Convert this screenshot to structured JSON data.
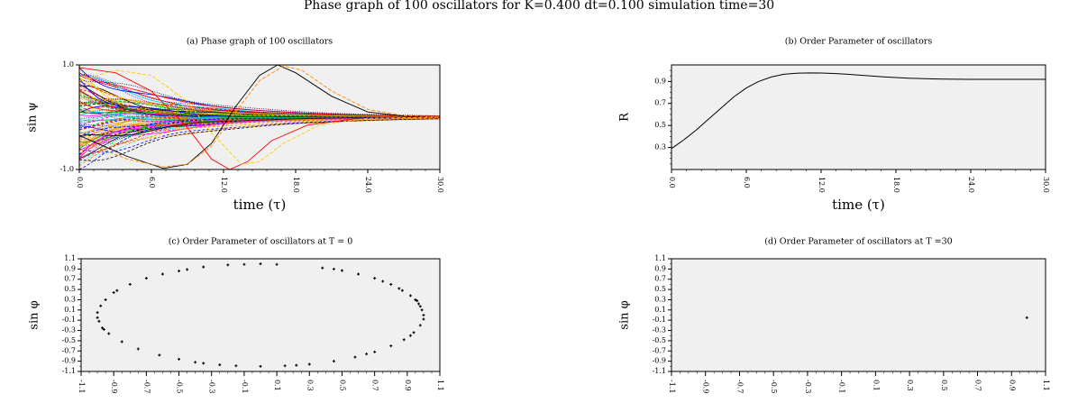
{
  "figure_title": "Phase graph of 100 oscillators for K=0.400 dt=0.100 simulation time=30",
  "chart_data": [
    {
      "id": "a",
      "type": "line",
      "title": "(a) Phase graph of 100 oscillators",
      "xlabel": "time (τ)",
      "ylabel": "sin ψ",
      "xlim": [
        0,
        30
      ],
      "ylim": [
        -1,
        1
      ],
      "x_ticks": [
        "0.0",
        "6.0",
        "12.0",
        "18.0",
        "24.0",
        "30.0"
      ],
      "y_ticks": [
        "-1.0",
        "1.0"
      ],
      "background": "#f0f0f0",
      "num_series": 100,
      "series_colors": [
        "#000000",
        "#ff0000",
        "#00aa00",
        "#0000ff",
        "#ff00ff",
        "#00cccc",
        "#ffcc00",
        "#ff8800"
      ],
      "converge_value": 0.0,
      "highlight_series": [
        {
          "color": "#000000",
          "points": [
            [
              0,
              -0.35
            ],
            [
              4,
              -0.75
            ],
            [
              7,
              -0.98
            ],
            [
              9,
              -0.9
            ],
            [
              11,
              -0.5
            ],
            [
              13,
              0.2
            ],
            [
              15,
              0.8
            ],
            [
              16.5,
              1.0
            ],
            [
              18,
              0.85
            ],
            [
              21,
              0.4
            ],
            [
              24,
              0.1
            ],
            [
              27,
              0.02
            ],
            [
              30,
              0.0
            ]
          ]
        },
        {
          "color": "#ff8800",
          "points": [
            [
              0,
              -0.45
            ],
            [
              4,
              -0.8
            ],
            [
              7,
              -0.95
            ],
            [
              9,
              -0.9
            ],
            [
              11,
              -0.55
            ],
            [
              13,
              0.1
            ],
            [
              15,
              0.7
            ],
            [
              17,
              0.98
            ],
            [
              18.5,
              0.9
            ],
            [
              21,
              0.5
            ],
            [
              24,
              0.15
            ],
            [
              27,
              0.03
            ],
            [
              30,
              0.0
            ]
          ]
        },
        {
          "color": "#ff0000",
          "points": [
            [
              0,
              0.95
            ],
            [
              3,
              0.85
            ],
            [
              6,
              0.5
            ],
            [
              9,
              -0.2
            ],
            [
              11,
              -0.8
            ],
            [
              12.5,
              -1.0
            ],
            [
              14,
              -0.85
            ],
            [
              16,
              -0.45
            ],
            [
              19,
              -0.15
            ],
            [
              23,
              -0.03
            ],
            [
              30,
              0.0
            ]
          ]
        },
        {
          "color": "#ffcc00",
          "points": [
            [
              0,
              0.7
            ],
            [
              3,
              0.9
            ],
            [
              6,
              0.8
            ],
            [
              9,
              0.3
            ],
            [
              11,
              -0.3
            ],
            [
              13.5,
              -0.9
            ],
            [
              15,
              -0.85
            ],
            [
              17,
              -0.5
            ],
            [
              20,
              -0.15
            ],
            [
              24,
              -0.02
            ],
            [
              30,
              0.0
            ]
          ]
        }
      ]
    },
    {
      "id": "b",
      "type": "line",
      "title": "(b) Order Parameter of oscillators",
      "xlabel": "time (τ)",
      "ylabel": "R",
      "xlim": [
        0,
        30
      ],
      "ylim": [
        0.1,
        1.05
      ],
      "x_ticks": [
        "0.0",
        "6.0",
        "12.0",
        "18.0",
        "24.0",
        "30.0"
      ],
      "y_ticks": [
        "0.3",
        "0.5",
        "0.7",
        "0.9"
      ],
      "background": "#f0f0f0",
      "x": [
        0,
        1,
        2,
        3,
        4,
        5,
        6,
        7,
        8,
        9,
        10,
        11,
        12,
        13,
        14,
        15,
        16,
        17,
        18,
        19,
        20,
        21,
        22,
        23,
        24,
        25,
        26,
        27,
        28,
        29,
        30
      ],
      "values": [
        0.29,
        0.37,
        0.46,
        0.56,
        0.66,
        0.76,
        0.84,
        0.9,
        0.94,
        0.965,
        0.975,
        0.977,
        0.976,
        0.972,
        0.966,
        0.958,
        0.95,
        0.942,
        0.935,
        0.93,
        0.926,
        0.923,
        0.921,
        0.92,
        0.919,
        0.919,
        0.919,
        0.919,
        0.919,
        0.919,
        0.919
      ]
    },
    {
      "id": "c",
      "type": "scatter",
      "title": "(c) Order Parameter of oscillators at T = 0",
      "ylabel": "sin φ",
      "xlim": [
        -1.1,
        1.1
      ],
      "ylim": [
        -1.1,
        1.1
      ],
      "x_ticks": [
        "-1.1",
        "-0.9",
        "-0.7",
        "-0.5",
        "-0.3",
        "-0.1",
        "0.1",
        "0.3",
        "0.5",
        "0.7",
        "0.9",
        "1.1"
      ],
      "y_ticks": [
        "1.1",
        "0.9",
        "0.7",
        "0.5",
        "0.3",
        "0.1",
        "-0.1",
        "-0.3",
        "-0.5",
        "-0.7",
        "-0.9",
        "-1.1"
      ],
      "background": "#f0f0f0",
      "points": [
        [
          1.0,
          0.0
        ],
        [
          0.99,
          0.1
        ],
        [
          0.98,
          0.17
        ],
        [
          0.97,
          0.22
        ],
        [
          0.95,
          0.3
        ],
        [
          0.92,
          0.38
        ],
        [
          0.87,
          0.48
        ],
        [
          0.8,
          0.6
        ],
        [
          0.7,
          0.72
        ],
        [
          0.6,
          0.8
        ],
        [
          0.45,
          0.9
        ],
        [
          0.38,
          0.92
        ],
        [
          0.1,
          0.99
        ],
        [
          0.0,
          1.0
        ],
        [
          -0.2,
          0.98
        ],
        [
          -0.35,
          0.94
        ],
        [
          -0.5,
          0.86
        ],
        [
          -0.6,
          0.8
        ],
        [
          -0.7,
          0.72
        ],
        [
          -0.8,
          0.6
        ],
        [
          -0.88,
          0.48
        ],
        [
          -0.95,
          0.3
        ],
        [
          -0.98,
          0.18
        ],
        [
          -1.0,
          0.05
        ],
        [
          -1.0,
          -0.05
        ],
        [
          -0.99,
          -0.12
        ],
        [
          -0.97,
          -0.25
        ],
        [
          -0.93,
          -0.36
        ],
        [
          -0.85,
          -0.52
        ],
        [
          -0.75,
          -0.66
        ],
        [
          -0.62,
          -0.78
        ],
        [
          -0.5,
          -0.86
        ],
        [
          -0.35,
          -0.94
        ],
        [
          -0.25,
          -0.97
        ],
        [
          -0.15,
          -0.99
        ],
        [
          0.0,
          -1.0
        ],
        [
          0.15,
          -0.99
        ],
        [
          0.3,
          -0.96
        ],
        [
          0.45,
          -0.9
        ],
        [
          0.58,
          -0.82
        ],
        [
          0.7,
          -0.72
        ],
        [
          0.8,
          -0.6
        ],
        [
          0.88,
          -0.48
        ],
        [
          0.94,
          -0.34
        ],
        [
          0.98,
          -0.2
        ],
        [
          1.0,
          -0.08
        ],
        [
          0.96,
          0.28
        ],
        [
          0.85,
          0.52
        ],
        [
          0.75,
          0.66
        ],
        [
          0.5,
          0.87
        ],
        [
          -0.1,
          0.99
        ],
        [
          -0.45,
          0.89
        ],
        [
          -0.9,
          0.44
        ],
        [
          -0.96,
          -0.28
        ],
        [
          -0.4,
          -0.92
        ],
        [
          0.22,
          -0.98
        ],
        [
          0.65,
          -0.76
        ],
        [
          0.92,
          -0.4
        ]
      ]
    },
    {
      "id": "d",
      "type": "scatter",
      "title": "(d) Order Parameter of oscillators at T =30",
      "ylabel": "sin φ",
      "xlim": [
        -1.1,
        1.1
      ],
      "ylim": [
        -1.1,
        1.1
      ],
      "x_ticks": [
        "-1.1",
        "-0.9",
        "-0.7",
        "-0.5",
        "-0.3",
        "-0.1",
        "0.1",
        "0.3",
        "0.5",
        "0.7",
        "0.9",
        "1.1"
      ],
      "y_ticks": [
        "1.1",
        "0.9",
        "0.7",
        "0.5",
        "0.3",
        "0.1",
        "-0.1",
        "-0.3",
        "-0.5",
        "-0.7",
        "-0.9",
        "-1.1"
      ],
      "background": "#f0f0f0",
      "points": [
        [
          0.99,
          -0.05
        ]
      ]
    }
  ]
}
